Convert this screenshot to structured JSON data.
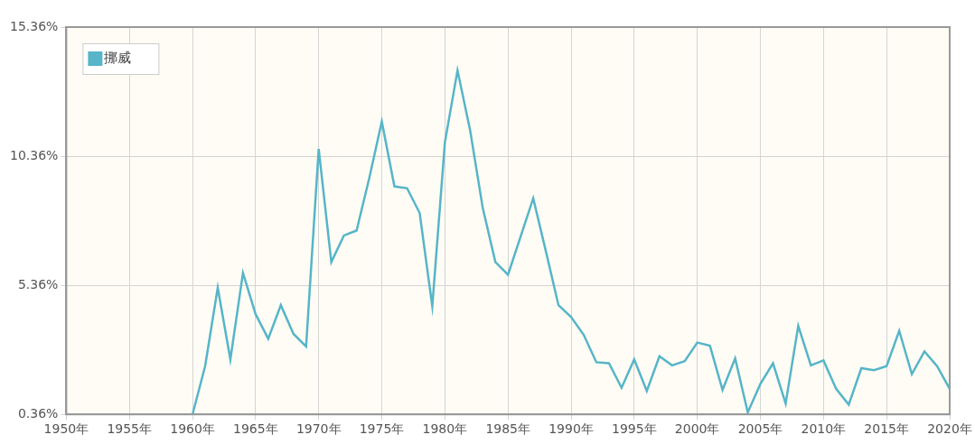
{
  "chart_data": {
    "type": "line",
    "x": [
      1960,
      1961,
      1962,
      1963,
      1964,
      1965,
      1966,
      1967,
      1968,
      1969,
      1970,
      1971,
      1972,
      1973,
      1974,
      1975,
      1976,
      1977,
      1978,
      1979,
      1980,
      1981,
      1982,
      1983,
      1984,
      1985,
      1986,
      1987,
      1988,
      1989,
      1990,
      1991,
      1992,
      1993,
      1994,
      1995,
      1996,
      1997,
      1998,
      1999,
      2000,
      2001,
      2002,
      2003,
      2004,
      2005,
      2006,
      2007,
      2008,
      2009,
      2010,
      2011,
      2012,
      2013,
      2014,
      2015,
      2016,
      2017,
      2018,
      2019,
      2020
    ],
    "series": [
      {
        "name": "挪威",
        "color": "#56b5c8",
        "values": [
          0.36,
          2.23,
          5.27,
          2.49,
          5.84,
          4.24,
          3.29,
          4.59,
          3.48,
          2.99,
          10.64,
          6.26,
          7.29,
          7.48,
          9.5,
          11.7,
          9.19,
          9.12,
          8.16,
          4.55,
          10.9,
          13.68,
          11.36,
          8.35,
          6.26,
          5.77,
          7.25,
          8.73,
          6.68,
          4.59,
          4.13,
          3.44,
          2.38,
          2.34,
          1.39,
          2.49,
          1.27,
          2.61,
          2.26,
          2.42,
          3.14,
          3.02,
          1.31,
          2.53,
          0.44,
          1.54,
          2.34,
          0.78,
          3.79,
          2.26,
          2.45,
          1.35,
          0.74,
          2.15,
          2.07,
          2.23,
          3.6,
          1.92,
          2.8,
          2.23,
          1.35
        ]
      }
    ],
    "xlim": [
      1950,
      2020
    ],
    "xticks": [
      {
        "value": 1950,
        "label": "1950年"
      },
      {
        "value": 1955,
        "label": "1955年"
      },
      {
        "value": 1960,
        "label": "1960年"
      },
      {
        "value": 1965,
        "label": "1965年"
      },
      {
        "value": 1970,
        "label": "1970年"
      },
      {
        "value": 1975,
        "label": "1975年"
      },
      {
        "value": 1980,
        "label": "1980年"
      },
      {
        "value": 1985,
        "label": "1985年"
      },
      {
        "value": 1990,
        "label": "1990年"
      },
      {
        "value": 1995,
        "label": "1995年"
      },
      {
        "value": 2000,
        "label": "2000年"
      },
      {
        "value": 2005,
        "label": "2005年"
      },
      {
        "value": 2010,
        "label": "2010年"
      },
      {
        "value": 2015,
        "label": "2015年"
      },
      {
        "value": 2020,
        "label": "2020年"
      }
    ],
    "ylim": [
      0.36,
      15.36
    ],
    "yticks": [
      {
        "value": 0.36,
        "label": "0.36%"
      },
      {
        "value": 5.36,
        "label": "5.36%"
      },
      {
        "value": 10.36,
        "label": "10.36%"
      },
      {
        "value": 15.36,
        "label": "15.36%"
      }
    ],
    "grid": true,
    "legend": "upper left"
  }
}
